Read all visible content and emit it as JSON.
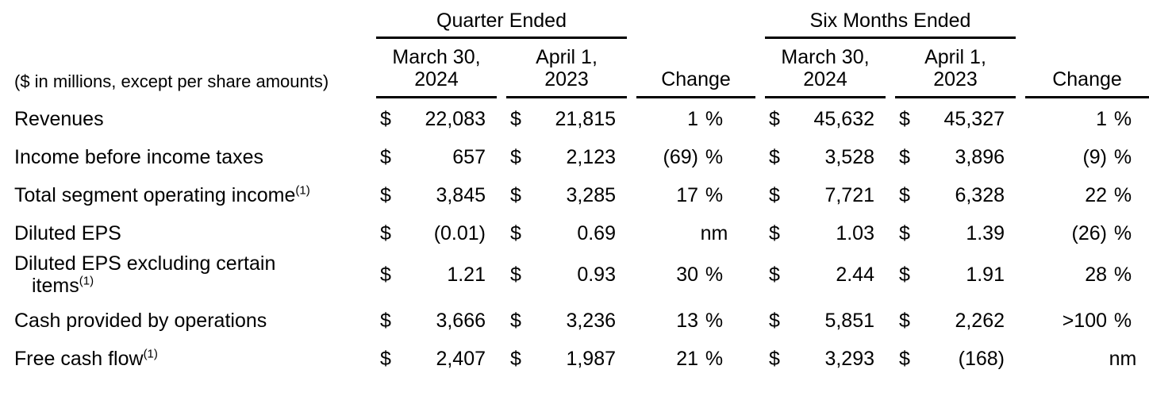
{
  "table": {
    "units_note": "($ in millions, except per share amounts)",
    "currency_symbol": "$",
    "groups": {
      "quarter": "Quarter Ended",
      "six_months": "Six Months Ended"
    },
    "columns": {
      "q2024_line1": "March 30,",
      "q2024_line2": "2024",
      "q2023_line1": "April 1,",
      "q2023_line2": "2023",
      "s2024_line1": "March 30,",
      "s2024_line2": "2024",
      "s2023_line1": "April 1,",
      "s2023_line2": "2023",
      "change_q": "Change",
      "change_s": "Change"
    },
    "rows": [
      {
        "label": "Revenues",
        "footnote": "",
        "q2024": "22,083",
        "q2023": "21,815",
        "chg_q": "1",
        "chg_q_unit": "%",
        "s2024": "45,632",
        "s2023": "45,327",
        "chg_s": "1",
        "chg_s_unit": "%"
      },
      {
        "label": "Income before income taxes",
        "footnote": "",
        "q2024": "657",
        "q2023": "2,123",
        "chg_q": "(69)",
        "chg_q_unit": "%",
        "s2024": "3,528",
        "s2023": "3,896",
        "chg_s": "(9)",
        "chg_s_unit": "%"
      },
      {
        "label": "Total segment operating income",
        "footnote": "(1)",
        "q2024": "3,845",
        "q2023": "3,285",
        "chg_q": "17",
        "chg_q_unit": "%",
        "s2024": "7,721",
        "s2023": "6,328",
        "chg_s": "22",
        "chg_s_unit": "%"
      },
      {
        "label": "Diluted EPS",
        "footnote": "",
        "q2024": "(0.01)",
        "q2023": "0.69",
        "chg_q": "",
        "chg_q_unit": "nm",
        "s2024": "1.03",
        "s2023": "1.39",
        "chg_s": "(26)",
        "chg_s_unit": "%"
      },
      {
        "label": "Diluted EPS excluding certain\nitems",
        "footnote": "(1)",
        "q2024": "1.21",
        "q2023": "0.93",
        "chg_q": "30",
        "chg_q_unit": "%",
        "s2024": "2.44",
        "s2023": "1.91",
        "chg_s": "28",
        "chg_s_unit": "%"
      },
      {
        "label": "Cash provided by operations",
        "footnote": "",
        "q2024": "3,666",
        "q2023": "3,236",
        "chg_q": "13",
        "chg_q_unit": "%",
        "s2024": "5,851",
        "s2023": "2,262",
        "chg_s": ">100",
        "chg_s_unit": "%"
      },
      {
        "label": "Free cash flow",
        "footnote": "(1)",
        "q2024": "2,407",
        "q2023": "1,987",
        "chg_q": "21",
        "chg_q_unit": "%",
        "s2024": "3,293",
        "s2023": "(168)",
        "chg_s": "",
        "chg_s_unit": "nm"
      }
    ]
  }
}
